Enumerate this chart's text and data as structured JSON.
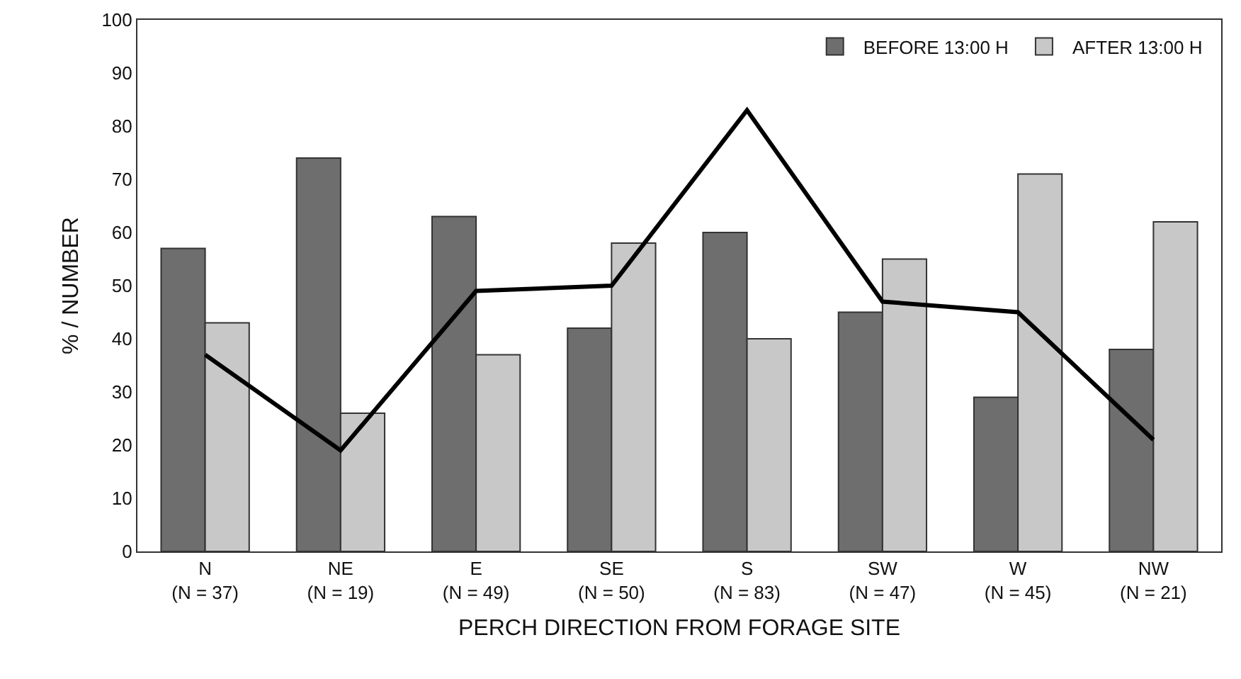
{
  "chart_data": {
    "type": "bar",
    "xlabel": "PERCH DIRECTION FROM FORAGE SITE",
    "ylabel": "% / NUMBER",
    "categories": [
      "N\n(N = 37)",
      "NE\n(N = 19)",
      "E\n(N = 49)",
      "SE\n(N = 50)",
      "S\n(N = 83)",
      "SW\n(N = 47)",
      "W\n(N = 45)",
      "NW\n(N = 21)"
    ],
    "series": [
      {
        "name": "BEFORE 13:00 H",
        "color": "#6e6e6e",
        "values": [
          57,
          74,
          63,
          42,
          60,
          45,
          29,
          38
        ]
      },
      {
        "name": "AFTER 13:00 H",
        "color": "#c8c8c8",
        "values": [
          43,
          26,
          37,
          58,
          40,
          55,
          71,
          62
        ]
      },
      {
        "type": "line",
        "color": "#000000",
        "values": [
          37,
          19,
          49,
          50,
          83,
          47,
          45,
          21
        ]
      }
    ],
    "ylim": [
      0,
      100
    ],
    "yticks": [
      0,
      10,
      20,
      30,
      40,
      50,
      60,
      70,
      80,
      90,
      100
    ],
    "grid": false,
    "legend": "top right",
    "marker": "none",
    "line_style": "solid"
  }
}
